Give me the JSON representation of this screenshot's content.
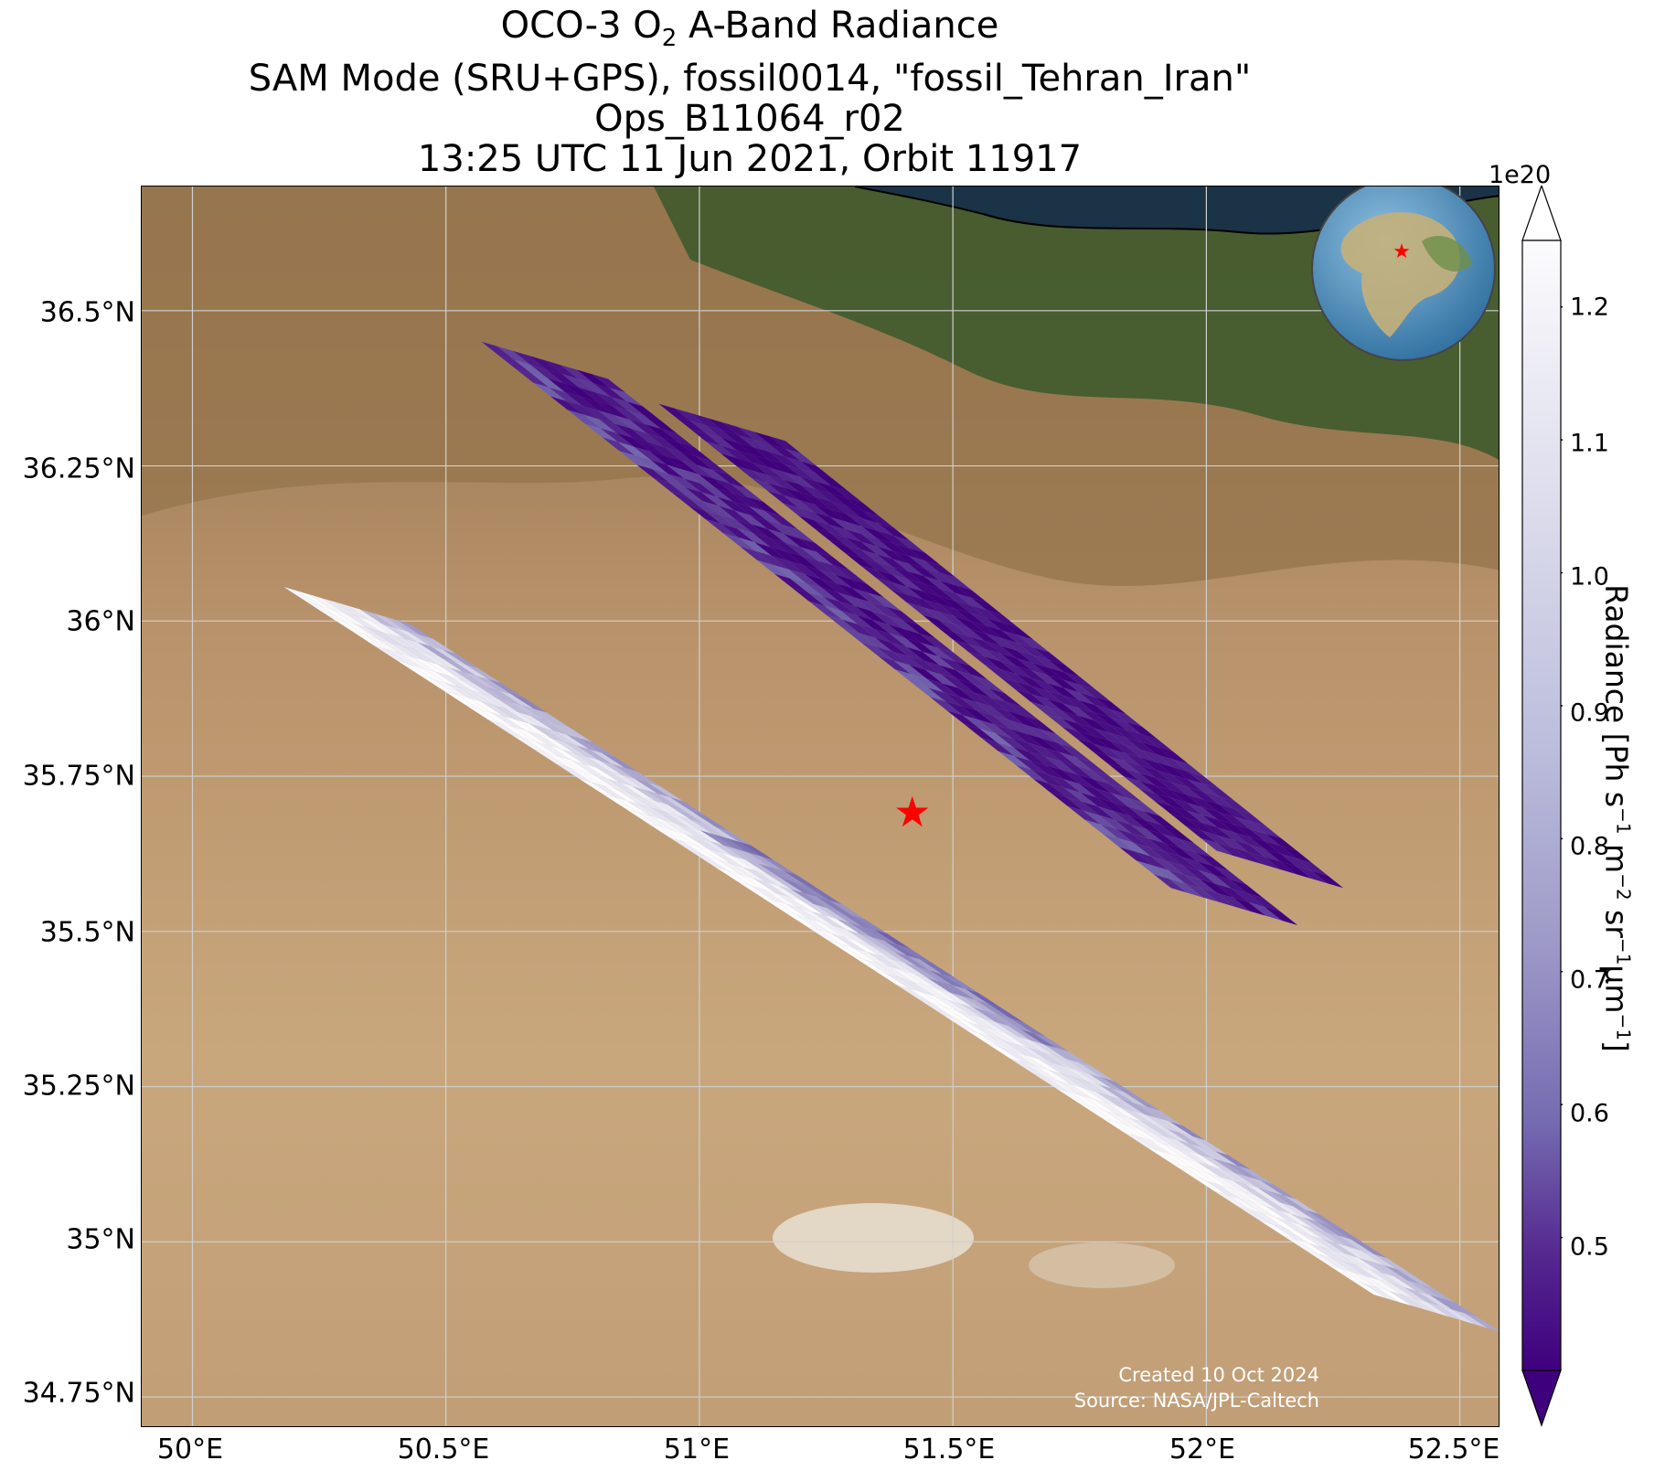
{
  "title": {
    "line1_pre": "OCO-3 O",
    "line1_sub": "2",
    "line1_post": " A-Band Radiance",
    "line2": "SAM Mode (SRU+GPS), fossil0014, \"fossil_Tehran_Iran\"",
    "line3": "Ops_B11064_r02",
    "line4": "13:25 UTC 11 Jun 2021, Orbit 11917"
  },
  "map": {
    "lat_ticks": [
      "36.5°N",
      "36.25°N",
      "36°N",
      "35.75°N",
      "35.5°N",
      "35.25°N",
      "35°N",
      "34.75°N"
    ],
    "lon_ticks": [
      "50°E",
      "50.5°E",
      "51°E",
      "51.5°E",
      "52°E",
      "52.5°E"
    ],
    "extent": {
      "lon_min": 49.9,
      "lon_max": 52.58,
      "lat_min": 34.7,
      "lat_max": 36.7
    },
    "target": {
      "name": "fossil_Tehran_Iran",
      "lon": 51.42,
      "lat": 35.69,
      "marker": "red-star-icon",
      "color": "#ff0000"
    },
    "basemap_colors": {
      "desert": "#c9a77d",
      "mountains": "#9a7a55",
      "forest": "#3f5a2c",
      "sea": "#1a3346",
      "salt_flat": "#e8e0d2"
    }
  },
  "credit": {
    "created": "Created 10 Oct 2024",
    "source": "Source: NASA/JPL-Caltech"
  },
  "colorbar": {
    "label_pre": "Radiance [Ph s",
    "ticks": [
      "1.2",
      "1.1",
      "1.0",
      "0.9",
      "0.8",
      "0.7",
      "0.6",
      "0.5"
    ],
    "exponent": "1e20",
    "colormap": "Purples_r",
    "range": [
      0.4,
      1.25
    ],
    "extend": "both"
  },
  "inset_globe": {
    "icon": "globe-icon",
    "marker": "red-star-icon"
  }
}
